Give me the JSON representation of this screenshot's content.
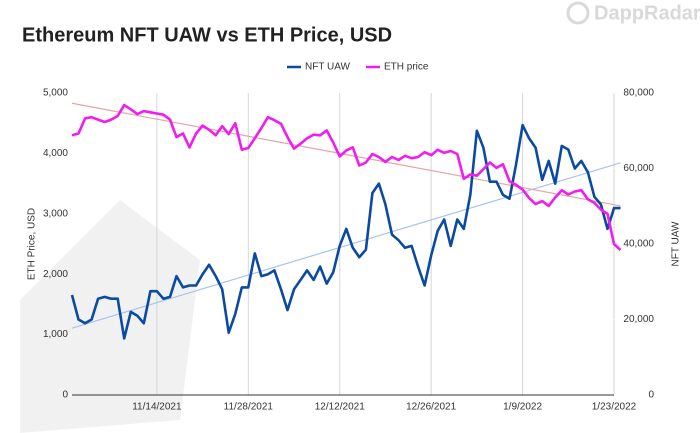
{
  "chart_data": {
    "type": "line",
    "title": "Ethereum NFT UAW vs ETH Price, USD",
    "watermark": "DappRadar",
    "y_label": "ETH Price, USD",
    "y2_label": "NFT UAW",
    "categories": [
      null,
      null,
      null,
      null,
      null,
      null,
      null,
      null,
      null,
      null,
      null,
      null,
      null,
      "11/14/2021",
      null,
      null,
      null,
      null,
      null,
      null,
      null,
      null,
      null,
      null,
      null,
      null,
      null,
      "11/28/2021",
      null,
      null,
      null,
      null,
      null,
      null,
      null,
      null,
      null,
      null,
      null,
      null,
      null,
      "12/12/2021",
      null,
      null,
      null,
      null,
      null,
      null,
      null,
      null,
      null,
      null,
      null,
      null,
      null,
      "12/26/2021",
      null,
      null,
      null,
      null,
      null,
      null,
      null,
      null,
      null,
      null,
      null,
      null,
      null,
      "1/9/2022",
      null,
      null,
      null,
      null,
      null,
      null,
      null,
      null,
      null,
      null,
      null,
      null,
      null,
      "1/23/2022",
      null
    ],
    "series": [
      {
        "name": "NFT UAW",
        "color": "#0b4aa2",
        "axis": "y2",
        "trend_color": "#a9c3ea",
        "trendline": [
          17700,
          61500
        ],
        "values": [
          26500,
          20000,
          19000,
          20000,
          25500,
          26000,
          25500,
          25500,
          15000,
          22000,
          21000,
          19000,
          27500,
          27500,
          25500,
          26000,
          31500,
          28500,
          29000,
          29000,
          32000,
          34500,
          31500,
          28000,
          16500,
          21500,
          28500,
          28500,
          37500,
          31500,
          32000,
          33000,
          28000,
          22500,
          28000,
          30500,
          33000,
          30500,
          34000,
          29500,
          32500,
          39500,
          44000,
          39000,
          36500,
          38500,
          53500,
          56000,
          50500,
          42500,
          41000,
          39000,
          39500,
          34000,
          29000,
          37000,
          43500,
          46500,
          39500,
          46500,
          44000,
          53000,
          70000,
          65500,
          56500,
          56500,
          53000,
          52000,
          61000,
          71500,
          68000,
          65500,
          57000,
          62000,
          56000,
          66000,
          65000,
          60000,
          62000,
          59000,
          52500,
          50500,
          44000,
          49500,
          49500
        ]
      },
      {
        "name": "ETH price",
        "color": "#f01cf0",
        "axis": "y",
        "trend_color": "#e9a3a3",
        "trendline": [
          4830,
          3130
        ],
        "values": [
          4300,
          4330,
          4580,
          4600,
          4560,
          4520,
          4560,
          4620,
          4800,
          4730,
          4650,
          4700,
          4680,
          4660,
          4640,
          4560,
          4270,
          4330,
          4100,
          4330,
          4460,
          4390,
          4300,
          4450,
          4320,
          4500,
          4060,
          4090,
          4250,
          4420,
          4600,
          4550,
          4490,
          4270,
          4080,
          4160,
          4250,
          4310,
          4300,
          4380,
          4180,
          3950,
          4050,
          4100,
          3800,
          3850,
          3990,
          3940,
          3860,
          3940,
          3890,
          3960,
          3920,
          3940,
          4020,
          3970,
          4060,
          4010,
          4040,
          3990,
          3580,
          3650,
          3630,
          3740,
          3850,
          3760,
          3820,
          3540,
          3480,
          3400,
          3260,
          3160,
          3210,
          3130,
          3270,
          3390,
          3320,
          3370,
          3390,
          3240,
          3180,
          3070,
          3000,
          2500,
          2400
        ]
      }
    ],
    "ylim": [
      0,
      5000
    ],
    "yticks": [
      0,
      {
        "value": 1000,
        "label": "1,000"
      },
      {
        "value": 2000,
        "label": "2,000"
      },
      {
        "value": 3000,
        "label": "3,000"
      },
      {
        "value": 4000,
        "label": "4,000"
      },
      {
        "value": 5000,
        "label": "5,000"
      }
    ],
    "y2lim": [
      0,
      80000
    ],
    "y2ticks": [
      0,
      {
        "value": 20000,
        "label": "20,000"
      },
      {
        "value": 40000,
        "label": "40,000"
      },
      {
        "value": 60000,
        "label": "60,000"
      },
      {
        "value": 80000,
        "label": "80,000"
      }
    ],
    "grid": "x",
    "legend": "top"
  }
}
